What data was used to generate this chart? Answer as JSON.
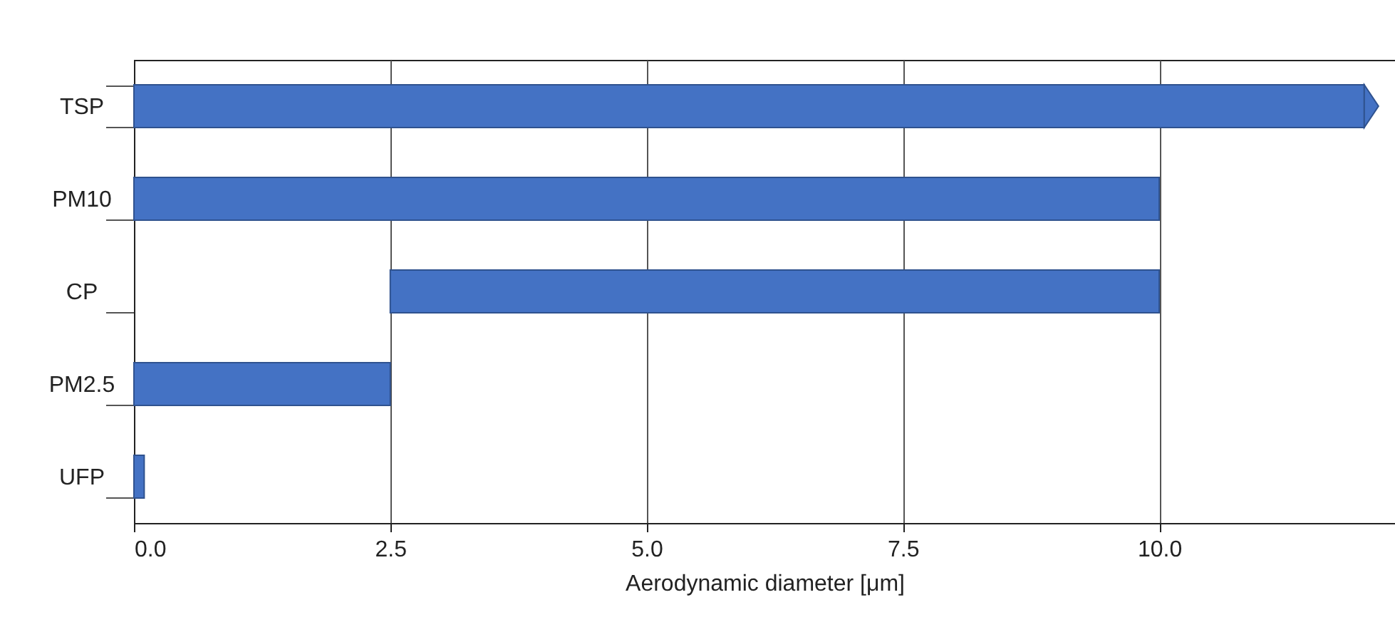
{
  "chart_data": {
    "type": "bar",
    "orientation": "horizontal",
    "xlabel": "Aerodynamic diameter [μm]",
    "categories": [
      "TSP",
      "PM10",
      "CP",
      "PM2.5",
      "UFP"
    ],
    "values": [
      12.0,
      10,
      7.5,
      2.5,
      0.1
    ],
    "base": [
      0,
      0,
      2.5,
      0,
      0
    ],
    "color": "#4472c4",
    "xlim": [
      0,
      12.3
    ],
    "xticks": [
      {
        "value": 0,
        "label": "0.0"
      },
      {
        "value": 2.5,
        "label": "2.5"
      },
      {
        "value": 5,
        "label": "5.0"
      },
      {
        "value": 7.5,
        "label": "7.5"
      },
      {
        "value": 10,
        "label": "10.0"
      }
    ],
    "grid": "x"
  }
}
